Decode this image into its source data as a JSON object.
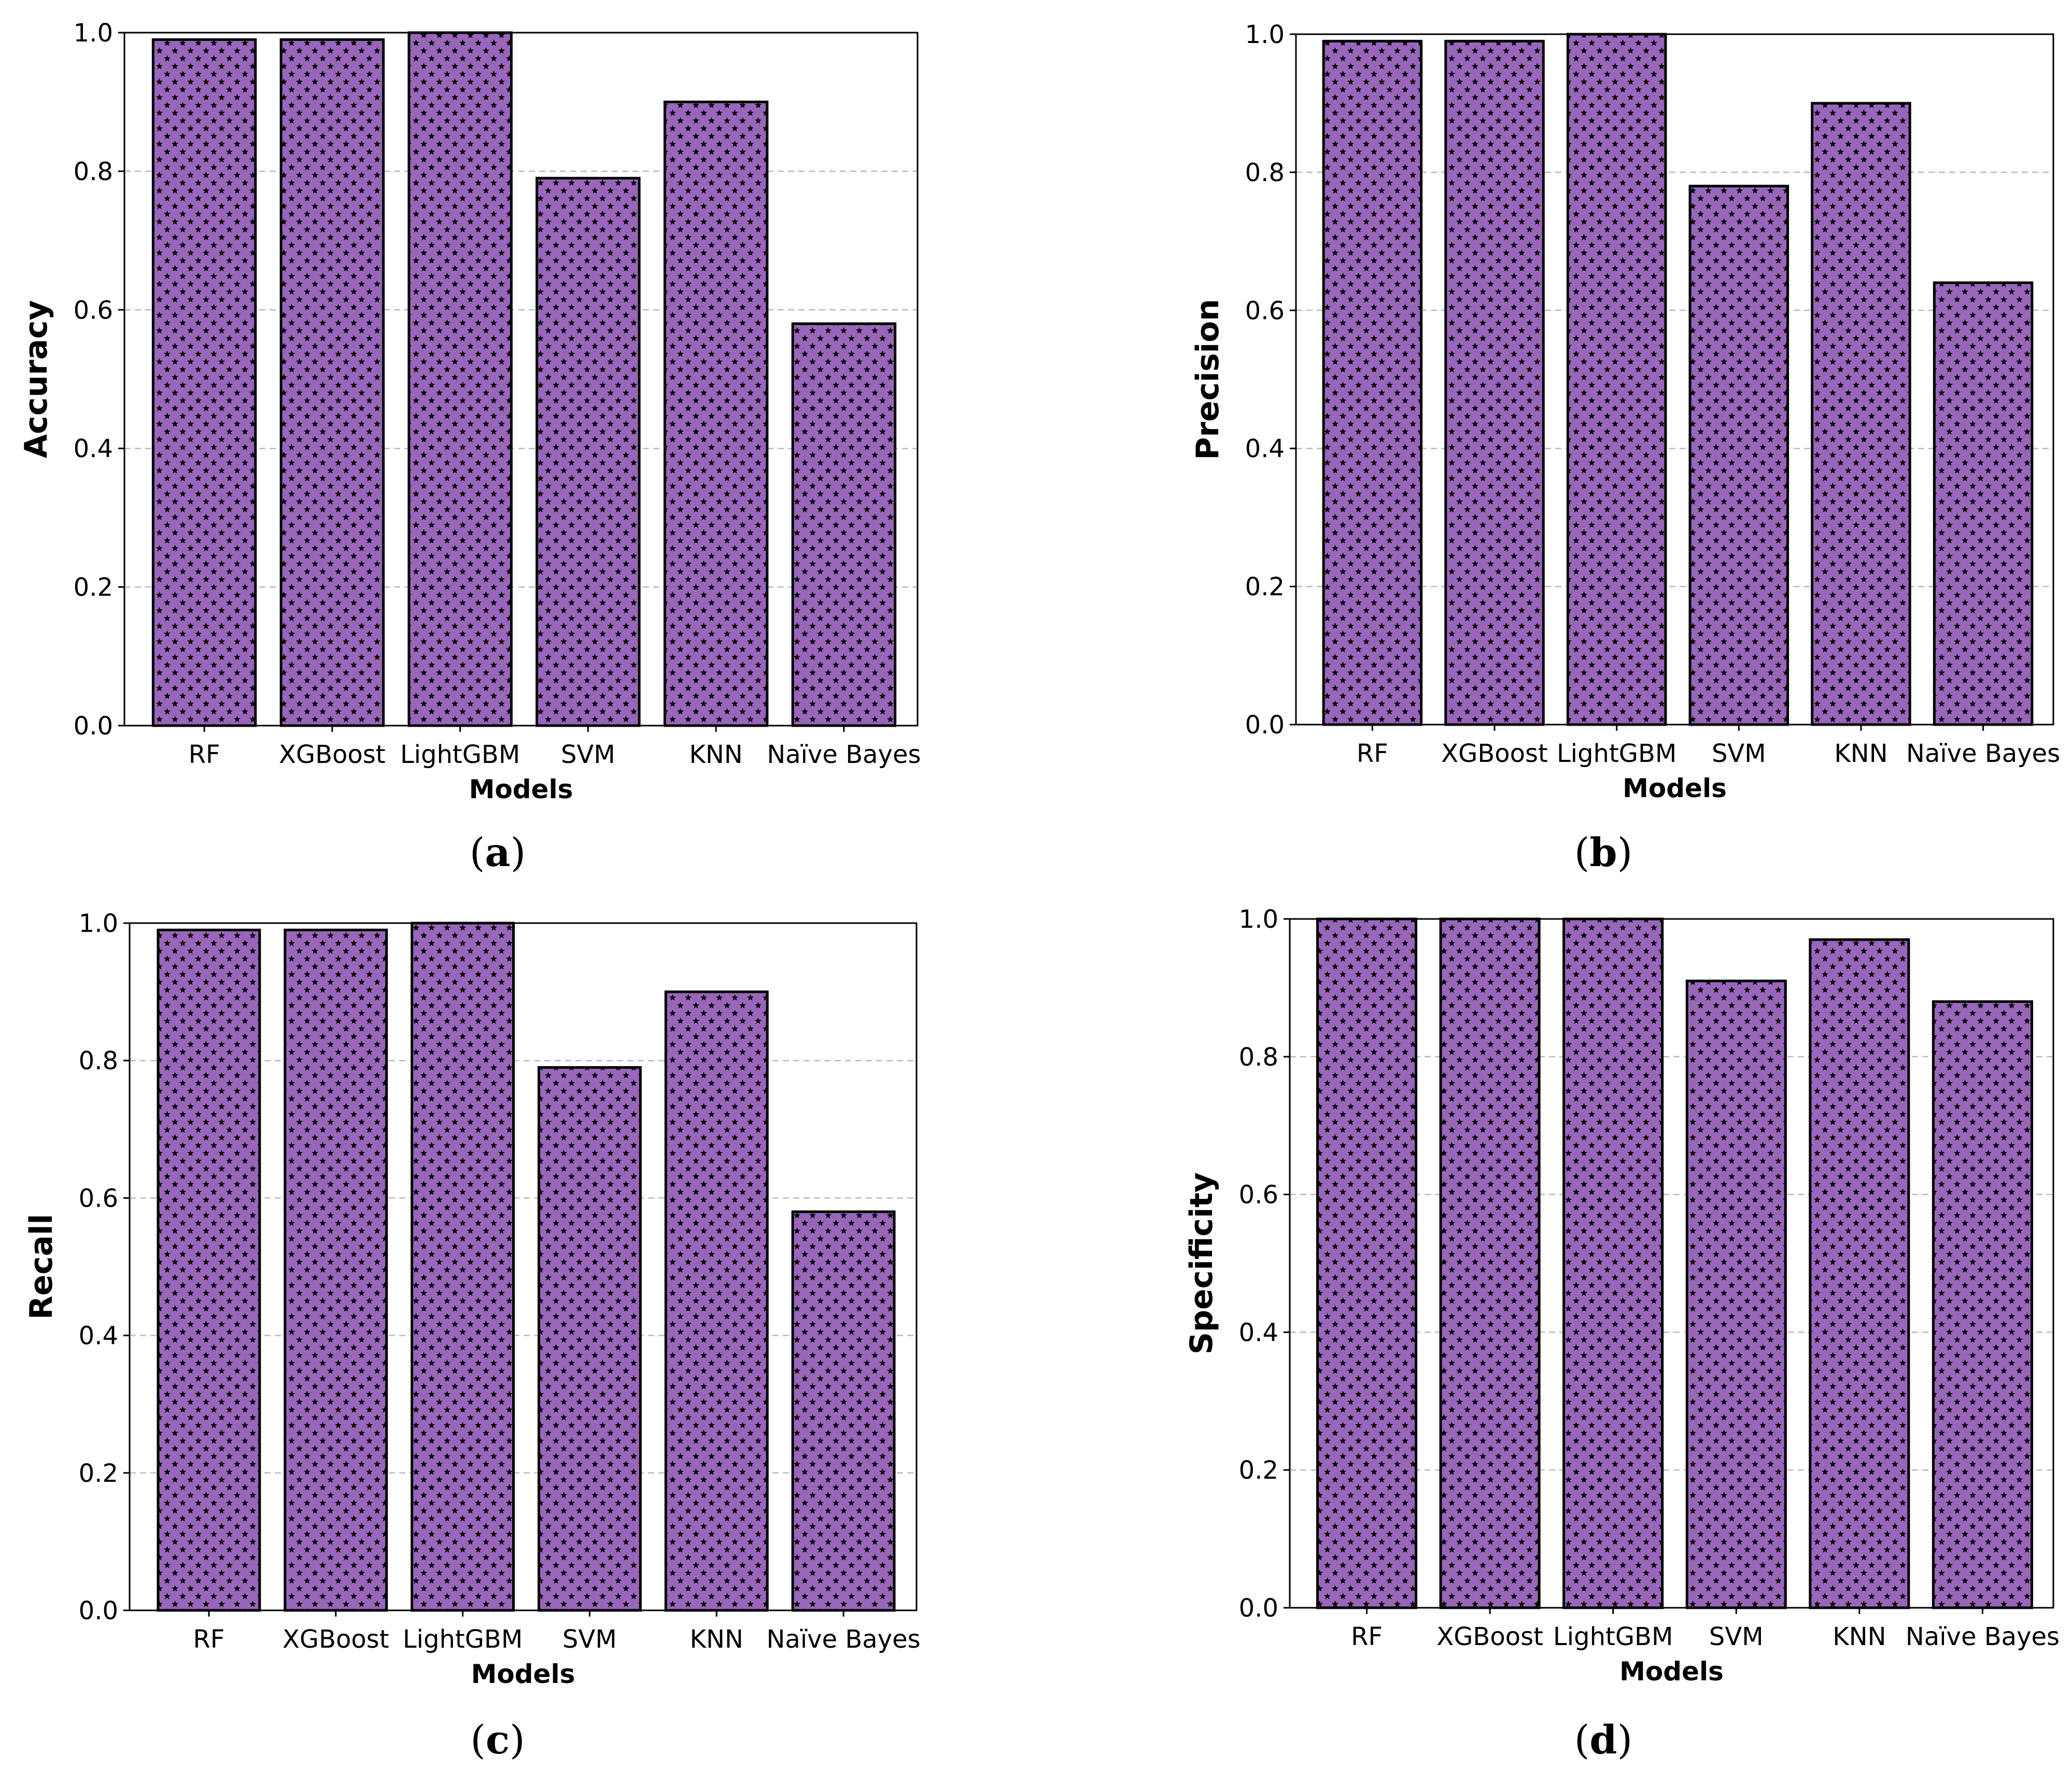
{
  "colors": {
    "bar_fill": "#9966bb",
    "bar_hatch": "#000000",
    "grid": "#bbbbbb"
  },
  "chart_data": [
    {
      "type": "bar",
      "panel": "a",
      "caption_letter": "a",
      "title": "",
      "xlabel": "Models",
      "ylabel": "Accuracy",
      "categories": [
        "RF",
        "XGBoost",
        "LightGBM",
        "SVM",
        "KNN",
        "Naïve Bayes"
      ],
      "values": [
        0.99,
        0.99,
        1.0,
        0.79,
        0.9,
        0.58
      ],
      "ylim": [
        0,
        1.0
      ],
      "yticks": [
        "0.0",
        "0.2",
        "0.4",
        "0.6",
        "0.8",
        "1.0"
      ],
      "grid": "y-dashed"
    },
    {
      "type": "bar",
      "panel": "b",
      "caption_letter": "b",
      "title": "",
      "xlabel": "Models",
      "ylabel": "Precision",
      "categories": [
        "RF",
        "XGBoost",
        "LightGBM",
        "SVM",
        "KNN",
        "Naïve Bayes"
      ],
      "values": [
        0.99,
        0.99,
        1.0,
        0.78,
        0.9,
        0.64
      ],
      "ylim": [
        0,
        1.0
      ],
      "yticks": [
        "0.0",
        "0.2",
        "0.4",
        "0.6",
        "0.8",
        "1.0"
      ],
      "grid": "y-dashed"
    },
    {
      "type": "bar",
      "panel": "c",
      "caption_letter": "c",
      "title": "",
      "xlabel": "Models",
      "ylabel": "Recall",
      "categories": [
        "RF",
        "XGBoost",
        "LightGBM",
        "SVM",
        "KNN",
        "Naïve Bayes"
      ],
      "values": [
        0.99,
        0.99,
        1.0,
        0.79,
        0.9,
        0.58
      ],
      "ylim": [
        0,
        1.0
      ],
      "yticks": [
        "0.0",
        "0.2",
        "0.4",
        "0.6",
        "0.8",
        "1.0"
      ],
      "grid": "y-dashed"
    },
    {
      "type": "bar",
      "panel": "d",
      "caption_letter": "d",
      "title": "",
      "xlabel": "Models",
      "ylabel": "Specificity",
      "categories": [
        "RF",
        "XGBoost",
        "LightGBM",
        "SVM",
        "KNN",
        "Naïve Bayes"
      ],
      "values": [
        1.0,
        1.0,
        1.0,
        0.91,
        0.97,
        0.88
      ],
      "ylim": [
        0,
        1.0
      ],
      "yticks": [
        "0.0",
        "0.2",
        "0.4",
        "0.6",
        "0.8",
        "1.0"
      ],
      "grid": "y-dashed"
    }
  ]
}
